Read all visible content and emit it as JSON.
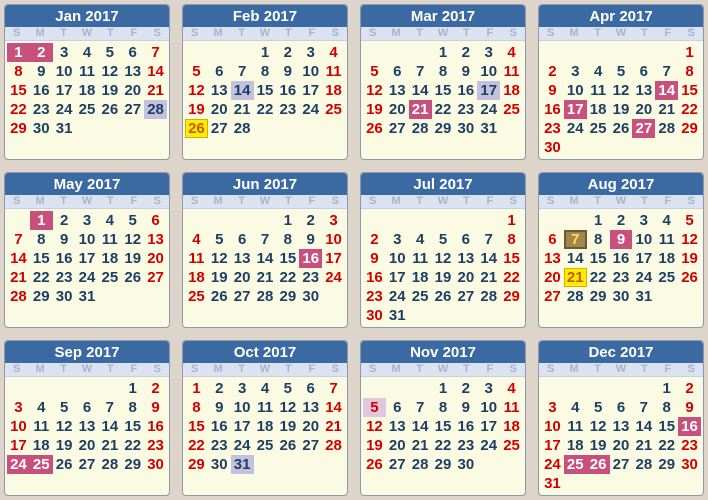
{
  "dow_labels": [
    "S",
    "M",
    "T",
    "W",
    "T",
    "F",
    "S"
  ],
  "months": [
    {
      "title": "Jan 2017",
      "start": 0,
      "days": 31,
      "highlights": {
        "1": "pink",
        "2": "pink",
        "28": "lav"
      }
    },
    {
      "title": "Feb 2017",
      "start": 3,
      "days": 28,
      "highlights": {
        "14": "lav",
        "26": "yellow"
      }
    },
    {
      "title": "Mar 2017",
      "start": 3,
      "days": 31,
      "highlights": {
        "17": "lav",
        "21": "pink"
      }
    },
    {
      "title": "Apr 2017",
      "start": 6,
      "days": 30,
      "highlights": {
        "14": "pink",
        "17": "pink",
        "27": "pink"
      }
    },
    {
      "title": "May 2017",
      "start": 1,
      "days": 31,
      "highlights": {
        "1": "pink"
      }
    },
    {
      "title": "Jun 2017",
      "start": 4,
      "days": 30,
      "highlights": {
        "16": "pink"
      }
    },
    {
      "title": "Jul 2017",
      "start": 6,
      "days": 31,
      "highlights": {}
    },
    {
      "title": "Aug 2017",
      "start": 2,
      "days": 31,
      "highlights": {
        "7": "brown",
        "9": "pink",
        "21": "yellow"
      }
    },
    {
      "title": "Sep 2017",
      "start": 5,
      "days": 30,
      "highlights": {
        "24": "pink",
        "25": "pink"
      }
    },
    {
      "title": "Oct 2017",
      "start": 0,
      "days": 31,
      "highlights": {
        "31": "lav"
      }
    },
    {
      "title": "Nov 2017",
      "start": 3,
      "days": 30,
      "highlights": {
        "5": "lavred"
      }
    },
    {
      "title": "Dec 2017",
      "start": 5,
      "days": 31,
      "highlights": {
        "16": "pink",
        "25": "pink",
        "26": "pink"
      }
    }
  ],
  "colors": {
    "header_bg": "#3b6aa2",
    "body_bg": "#fbfbe3",
    "weekday_text": "#1c3f64",
    "weekend_text": "#d10000",
    "holiday_pink": "#c8507c",
    "lavender": "#c3c1dd",
    "yellow": "#ffee00"
  }
}
